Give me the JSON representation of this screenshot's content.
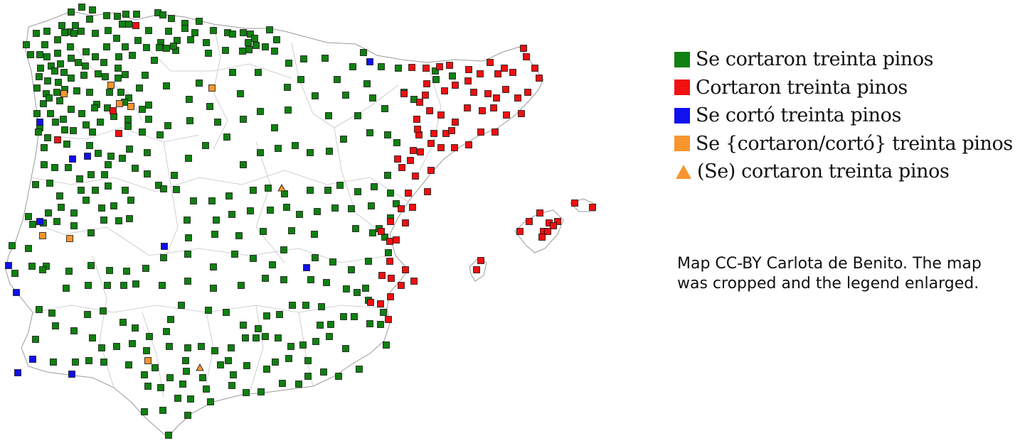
{
  "legend": [
    {
      "key": "se_plural",
      "label": "Se cortaron treinta pinos",
      "color": "#108010",
      "marker": "square"
    },
    {
      "key": "plural",
      "label": "Cortaron treinta pinos",
      "color": "#f01010",
      "marker": "square"
    },
    {
      "key": "se_singular",
      "label": "Se cortó treinta pinos",
      "color": "#1010f0",
      "marker": "square"
    },
    {
      "key": "se_mixed",
      "label": "Se {cortaron/cortó} treinta pinos",
      "color": "#f7962e",
      "marker": "square"
    },
    {
      "key": "optional_se",
      "label": "(Se) cortaron treinta pinos",
      "color": "#f7962e",
      "marker": "triangle"
    }
  ],
  "credit": {
    "line1": "Map CC-BY Carlota de Benito. The map",
    "line2": "was cropped and the legend enlarged."
  },
  "colors": {
    "coast": "#9a9a9a",
    "border": "#c4c4c4",
    "marker_stroke": "#111111"
  }
}
